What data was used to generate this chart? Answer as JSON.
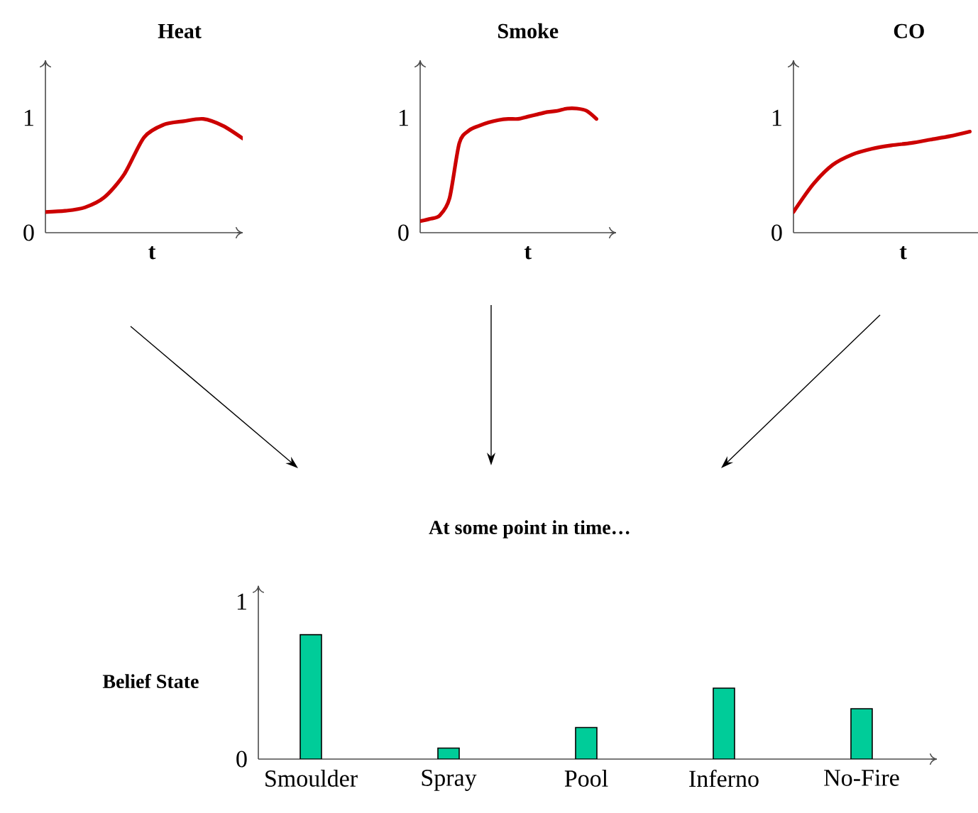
{
  "chart_data": [
    {
      "type": "line",
      "title": "Heat",
      "xlabel": "t",
      "categories": [
        null,
        null,
        null,
        null,
        null,
        null,
        null,
        null,
        null,
        null,
        null
      ],
      "ylim": [
        0,
        1.5
      ],
      "yticks": [
        0,
        1
      ],
      "tick_labels": "y",
      "series": [
        {
          "color": "#cc0000",
          "values": [
            0.18,
            0.19,
            0.22,
            0.31,
            0.51,
            0.83,
            0.94,
            0.97,
            0.99,
            0.93,
            0.82
          ]
        }
      ]
    },
    {
      "type": "line",
      "title": "Smoke",
      "xlabel": "t",
      "categories": [
        null,
        null,
        null,
        null,
        null,
        null,
        null,
        null,
        null,
        null,
        null,
        null,
        null,
        null,
        null,
        null,
        null,
        null,
        null,
        null,
        null
      ],
      "ylim": [
        0,
        1.5
      ],
      "yticks": [
        0,
        1
      ],
      "tick_labels": "y",
      "series": [
        {
          "color": "#cc0000",
          "values": [
            0.1,
            0.12,
            0.15,
            0.3,
            0.78,
            0.89,
            0.93,
            0.96,
            0.98,
            0.99,
            0.99,
            1.01,
            1.03,
            1.05,
            1.06,
            1.08,
            1.08,
            1.06,
            0.99,
            null,
            null
          ]
        }
      ]
    },
    {
      "type": "line",
      "title": "CO",
      "xlabel": "t",
      "categories": [
        null,
        null,
        null,
        null,
        null,
        null,
        null,
        null,
        null,
        null,
        null
      ],
      "ylim": [
        0,
        1.5
      ],
      "yticks": [
        0,
        1
      ],
      "tick_labels": "y",
      "series": [
        {
          "color": "#cc0000",
          "values": [
            0.18,
            0.42,
            0.59,
            0.68,
            0.73,
            0.76,
            0.78,
            0.81,
            0.84,
            0.88,
            null
          ]
        }
      ]
    },
    {
      "type": "bar",
      "title": "At some point in time…",
      "ylabel": "Belief State",
      "categories": [
        "Smoulder",
        "Spray",
        "Pool",
        "Inferno",
        "No-Fire"
      ],
      "ylim": [
        0,
        1.1
      ],
      "yticks": [
        0,
        1
      ],
      "values": [
        0.79,
        0.07,
        0.2,
        0.45,
        0.32
      ],
      "color": "#00cc99"
    }
  ]
}
